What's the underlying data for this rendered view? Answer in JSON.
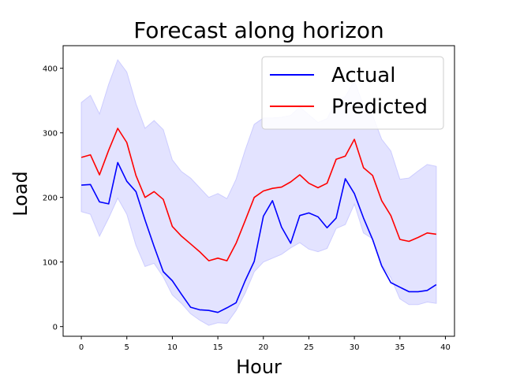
{
  "chart_data": {
    "type": "line",
    "title": "Forecast along horizon",
    "xlabel": "Hour",
    "ylabel": "Load",
    "xlim": [
      -2,
      41
    ],
    "ylim": [
      -15,
      435
    ],
    "xticks": [
      0,
      5,
      10,
      15,
      20,
      25,
      30,
      35,
      40
    ],
    "yticks": [
      0,
      100,
      200,
      300,
      400
    ],
    "grid": false,
    "legend_position": "top-right",
    "x": [
      0,
      1,
      2,
      3,
      4,
      5,
      6,
      7,
      8,
      9,
      10,
      11,
      12,
      13,
      14,
      15,
      16,
      17,
      18,
      19,
      20,
      21,
      22,
      23,
      24,
      25,
      26,
      27,
      28,
      29,
      30,
      31,
      32,
      33,
      34,
      35,
      36,
      37,
      38,
      39
    ],
    "series": [
      {
        "name": "Actual",
        "color": "#0000ff",
        "values": [
          219,
          220,
          193,
          190,
          254,
          225,
          209,
          165,
          124,
          85,
          71,
          50,
          30,
          26,
          25,
          22,
          29,
          37,
          71,
          101,
          171,
          195,
          154,
          129,
          172,
          176,
          170,
          153,
          168,
          229,
          206,
          168,
          135,
          94,
          68,
          61,
          54,
          54,
          56,
          65
        ]
      },
      {
        "name": "Predicted",
        "color": "#ff0000",
        "values": [
          262,
          266,
          235,
          273,
          307,
          285,
          234,
          200,
          209,
          197,
          155,
          140,
          128,
          116,
          102,
          106,
          102,
          129,
          164,
          200,
          210,
          214,
          216,
          224,
          235,
          222,
          215,
          222,
          259,
          264,
          290,
          246,
          234,
          195,
          172,
          135,
          132,
          138,
          145,
          143
        ]
      }
    ],
    "band": {
      "color": "#ccccff",
      "upper": [
        347,
        358,
        329,
        375,
        413,
        394,
        345,
        307,
        319,
        305,
        258,
        240,
        230,
        215,
        200,
        206,
        198,
        228,
        273,
        313,
        323,
        323,
        324,
        327,
        340,
        328,
        316,
        322,
        349,
        356,
        381,
        342,
        327,
        290,
        272,
        228,
        230,
        241,
        251,
        248
      ],
      "lower": [
        178,
        174,
        140,
        168,
        199,
        174,
        126,
        93,
        98,
        77,
        49,
        36,
        20,
        10,
        2,
        6,
        5,
        25,
        52,
        85,
        100,
        106,
        112,
        122,
        130,
        120,
        116,
        121,
        152,
        158,
        190,
        145,
        136,
        96,
        76,
        43,
        34,
        34,
        38,
        36
      ]
    }
  }
}
